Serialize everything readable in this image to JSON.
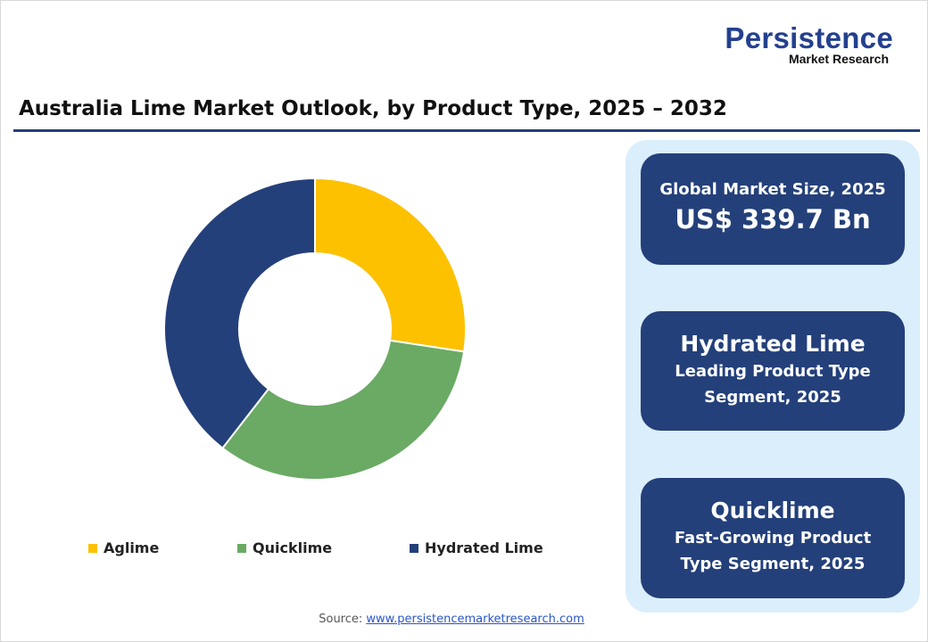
{
  "logo": {
    "line1": "Persistence",
    "line2": "Market Research"
  },
  "title": "Australia Lime Market Outlook, by Product Type, 2025 – 2032",
  "chart_data": {
    "type": "pie",
    "subtype": "donut",
    "categories": [
      "Aglime",
      "Quicklime",
      "Hydrated Lime"
    ],
    "values": [
      27.4,
      33.1,
      39.5
    ],
    "unit": "%",
    "colors": [
      "#fdc100",
      "#6aaa64",
      "#24407a"
    ],
    "legend_position": "bottom"
  },
  "cards": {
    "market_size": {
      "label": "Global Market Size, 2025",
      "value": "US$ 339.7 Bn"
    },
    "leading": {
      "title": "Hydrated Lime",
      "line1": "Leading Product Type",
      "line2": "Segment, 2025"
    },
    "fastest": {
      "title": "Quicklime",
      "line1": "Fast-Growing Product",
      "line2": "Type Segment, 2025"
    }
  },
  "source": {
    "label": "Source: ",
    "link": "www.persistencemarketresearch.com"
  }
}
